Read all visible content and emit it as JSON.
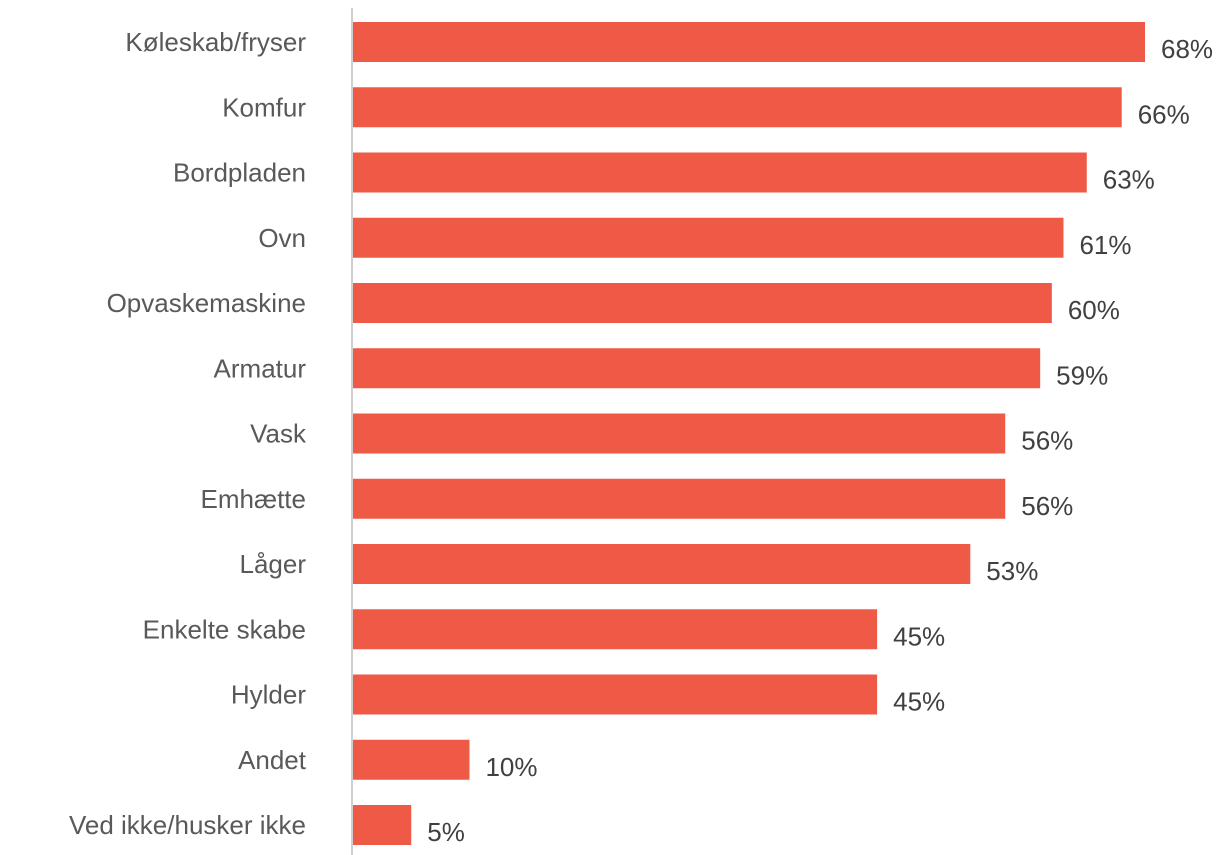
{
  "chart_data": {
    "type": "bar",
    "orientation": "horizontal",
    "categories": [
      "Køleskab/fryser",
      "Komfur",
      "Bordpladen",
      "Ovn",
      "Opvaskemaskine",
      "Armatur",
      "Vask",
      "Emhætte",
      "Låger",
      "Enkelte skabe",
      "Hylder",
      "Andet",
      "Ved ikke/husker ikke"
    ],
    "values": [
      68,
      66,
      63,
      61,
      60,
      59,
      56,
      56,
      53,
      45,
      45,
      10,
      5
    ],
    "value_labels": [
      "68%",
      "66%",
      "63%",
      "61%",
      "60%",
      "59%",
      "56%",
      "56%",
      "53%",
      "45%",
      "45%",
      "10%",
      "5%"
    ],
    "unit": "%",
    "xlim": [
      0,
      68
    ],
    "grid": false,
    "legend": "none",
    "colors": {
      "bar": "#EF5A47",
      "axis": "#BFBFBF",
      "category_text": "#595959",
      "value_text": "#404040"
    }
  }
}
